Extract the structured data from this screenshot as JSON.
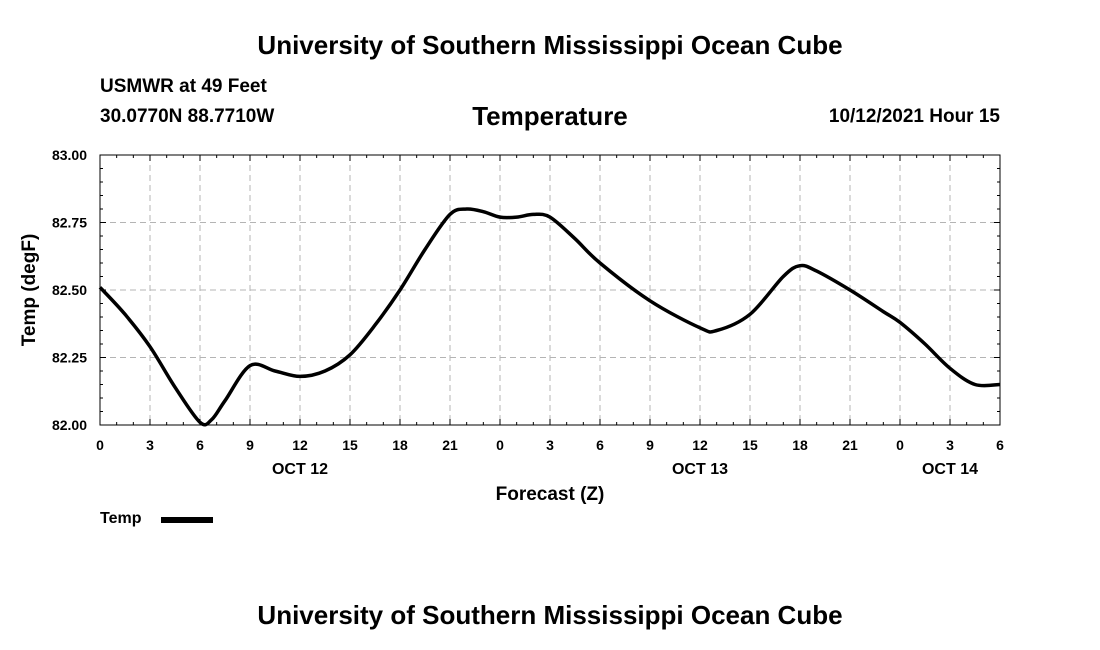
{
  "header": {
    "top_title": "University of Southern Mississippi Ocean Cube",
    "station": "USMWR at 49 Feet",
    "coords": "30.0770N  88.7710W",
    "chart_title": "Temperature",
    "datetime": "10/12/2021 Hour 15"
  },
  "footer": {
    "bottom_title": "University of Southern Mississippi Ocean Cube"
  },
  "legend": {
    "label": "Temp"
  },
  "colors": {
    "line": "#000000",
    "grid": "#b4b4b4"
  },
  "chart_data": {
    "type": "line",
    "title": "Temperature",
    "xlabel": "Forecast (Z)",
    "ylabel": "Temp (degF)",
    "xlim": [
      0,
      54
    ],
    "ylim": [
      82.0,
      83.0
    ],
    "yticks": [
      82.0,
      82.25,
      82.5,
      82.75,
      83.0
    ],
    "ytick_labels": [
      "82.00",
      "82.25",
      "82.50",
      "82.75",
      "83.00"
    ],
    "xticks": [
      0,
      3,
      6,
      9,
      12,
      15,
      18,
      21,
      24,
      27,
      30,
      33,
      36,
      39,
      42,
      45,
      48,
      51,
      54
    ],
    "xtick_labels": [
      "0",
      "3",
      "6",
      "9",
      "12",
      "15",
      "18",
      "21",
      "0",
      "3",
      "6",
      "9",
      "12",
      "15",
      "18",
      "21",
      "0",
      "3",
      "6"
    ],
    "date_labels": [
      {
        "x": 12,
        "label": "OCT 12"
      },
      {
        "x": 36,
        "label": "OCT 13"
      },
      {
        "x": 51,
        "label": "OCT 14"
      }
    ],
    "grid": true,
    "legend_position": "bottom-left",
    "series": [
      {
        "name": "Temp",
        "x": [
          0,
          1.5,
          3,
          4.5,
          6,
          6.7,
          7.5,
          9,
          10.5,
          12,
          13.5,
          15,
          16.5,
          18,
          19.5,
          21,
          22,
          23,
          24,
          25,
          26,
          27,
          28.5,
          30,
          33,
          36,
          37,
          39,
          41,
          42,
          43,
          45,
          47,
          48,
          49.5,
          51,
          52.5,
          54
        ],
        "values": [
          82.51,
          82.41,
          82.29,
          82.14,
          82.01,
          82.02,
          82.09,
          82.22,
          82.2,
          82.18,
          82.2,
          82.26,
          82.37,
          82.5,
          82.65,
          82.78,
          82.8,
          82.79,
          82.77,
          82.77,
          82.78,
          82.77,
          82.69,
          82.6,
          82.46,
          82.36,
          82.35,
          82.41,
          82.55,
          82.59,
          82.57,
          82.5,
          82.42,
          82.38,
          82.3,
          82.21,
          82.15,
          82.15
        ]
      }
    ]
  }
}
